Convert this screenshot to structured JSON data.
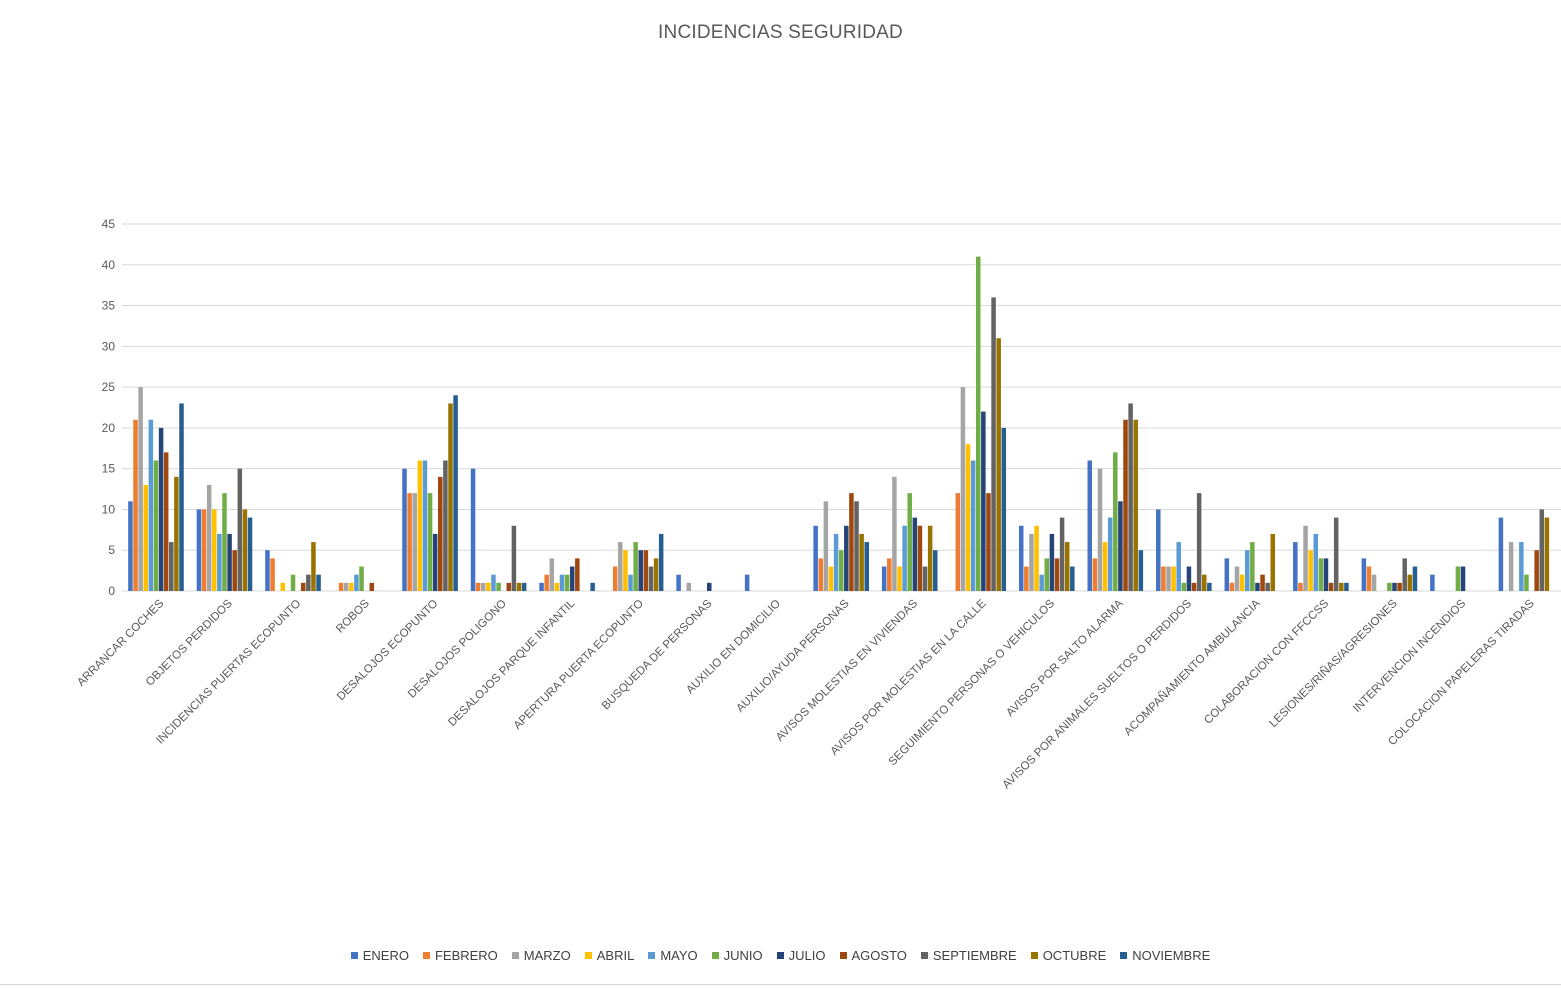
{
  "chart_data": {
    "type": "bar",
    "title": "INCIDENCIAS SEGURIDAD",
    "xlabel": "",
    "ylabel": "",
    "ylim": [
      0,
      45
    ],
    "yticks": [
      0,
      5,
      10,
      15,
      20,
      25,
      30,
      35,
      40,
      45
    ],
    "grid": true,
    "legend_position": "bottom",
    "categories": [
      "ARRANCAR COCHES",
      "OBJETOS PERDIDOS",
      "INCIDENCIAS PUERTAS ECOPUNTO",
      "ROBOS",
      "DESALOJOS ECOPUNTO",
      "DESALOJOS POLIGONO",
      "DESALOJOS PARQUE INFANTIL",
      "APERTURA PUERTA ECOPUNTO",
      "BUSQUEDA DE PERSONAS",
      "AUXILIO EN DOMICILIO",
      "AUXILIO/AYUDA PERSONAS",
      "AVISOS MOLESTIAS EN VIVIENDAS",
      "AVISOS POR MOLESTIAS EN LA CALLE",
      "SEGUIMIENTO PERSONAS O VEHICULOS",
      "AVISOS POR SALTO ALARMA",
      "AVISOS POR ANIMALES SUELTOS O PERDIDOS",
      "ACOMPAÑAMIENTO AMBULANCIA",
      "COLABORACION CON FFCCSS",
      "LESIONES/RIÑAS/AGRESIONES",
      "INTERVENCION INCENDIOS",
      "COLOCACION PAPELERAS TIRADAS"
    ],
    "series": [
      {
        "name": "ENERO",
        "color": "#4472C4",
        "values": [
          11,
          10,
          5,
          0,
          15,
          15,
          1,
          0,
          2,
          2,
          8,
          3,
          0,
          8,
          16,
          10,
          4,
          6,
          4,
          2,
          9
        ]
      },
      {
        "name": "FEBRERO",
        "color": "#ED7D31",
        "values": [
          21,
          10,
          4,
          1,
          12,
          1,
          2,
          3,
          0,
          0,
          4,
          4,
          12,
          3,
          4,
          3,
          1,
          1,
          3,
          0,
          0
        ]
      },
      {
        "name": "MARZO",
        "color": "#A5A5A5",
        "values": [
          25,
          13,
          0,
          1,
          12,
          1,
          4,
          6,
          1,
          0,
          11,
          14,
          25,
          7,
          15,
          3,
          3,
          8,
          2,
          0,
          6
        ]
      },
      {
        "name": "ABRIL",
        "color": "#FFC000",
        "values": [
          13,
          10,
          1,
          1,
          16,
          1,
          1,
          5,
          0,
          0,
          3,
          3,
          18,
          8,
          6,
          3,
          2,
          5,
          0,
          0,
          0
        ]
      },
      {
        "name": "MAYO",
        "color": "#5B9BD5",
        "values": [
          21,
          7,
          0,
          2,
          16,
          2,
          2,
          2,
          0,
          0,
          7,
          8,
          16,
          2,
          9,
          6,
          5,
          7,
          0,
          0,
          6
        ]
      },
      {
        "name": "JUNIO",
        "color": "#70AD47",
        "values": [
          16,
          12,
          2,
          3,
          12,
          1,
          2,
          6,
          0,
          0,
          5,
          12,
          41,
          4,
          17,
          1,
          6,
          4,
          1,
          3,
          2
        ]
      },
      {
        "name": "JULIO",
        "color": "#264478",
        "values": [
          20,
          7,
          0,
          0,
          7,
          0,
          3,
          5,
          1,
          0,
          8,
          9,
          22,
          7,
          11,
          3,
          1,
          4,
          1,
          3,
          0
        ]
      },
      {
        "name": "AGOSTO",
        "color": "#9E480E",
        "values": [
          17,
          5,
          1,
          1,
          14,
          1,
          4,
          5,
          0,
          0,
          12,
          8,
          12,
          4,
          21,
          1,
          2,
          1,
          1,
          0,
          5
        ]
      },
      {
        "name": "SEPTIEMBRE",
        "color": "#636363",
        "values": [
          6,
          15,
          2,
          0,
          16,
          8,
          0,
          3,
          0,
          0,
          11,
          3,
          36,
          9,
          23,
          12,
          1,
          9,
          4,
          0,
          10
        ]
      },
      {
        "name": "OCTUBRE",
        "color": "#997300",
        "values": [
          14,
          10,
          6,
          0,
          23,
          1,
          0,
          4,
          0,
          0,
          7,
          8,
          31,
          6,
          21,
          2,
          7,
          1,
          2,
          0,
          9
        ]
      },
      {
        "name": "NOVIEMBRE",
        "color": "#255E91",
        "values": [
          23,
          9,
          2,
          0,
          24,
          1,
          1,
          7,
          0,
          0,
          6,
          5,
          20,
          3,
          5,
          1,
          0,
          1,
          3,
          0,
          0
        ]
      }
    ]
  }
}
